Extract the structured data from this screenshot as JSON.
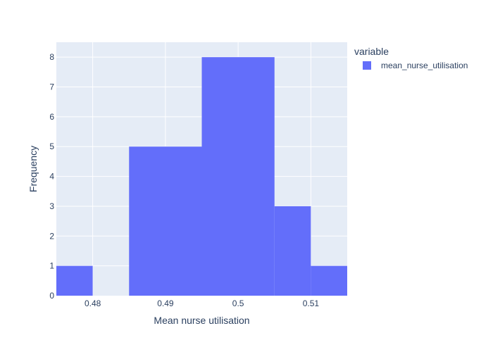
{
  "chart_data": {
    "type": "bar",
    "bins": [
      {
        "start": 0.475,
        "end": 0.48,
        "count": 1
      },
      {
        "start": 0.48,
        "end": 0.485,
        "count": 0
      },
      {
        "start": 0.485,
        "end": 0.495,
        "count": 5
      },
      {
        "start": 0.495,
        "end": 0.505,
        "count": 8
      },
      {
        "start": 0.505,
        "end": 0.51,
        "count": 3
      },
      {
        "start": 0.51,
        "end": 0.515,
        "count": 1
      }
    ],
    "xlabel": "Mean nurse utilisation",
    "ylabel": "Frequency",
    "xlim": [
      0.475,
      0.515
    ],
    "ylim": [
      0,
      8.5
    ],
    "xticks": [
      0.48,
      0.49,
      0.5,
      0.51
    ],
    "xtick_labels": [
      "0.48",
      "0.49",
      "0.5",
      "0.51"
    ],
    "yticks": [
      0,
      1,
      2,
      3,
      4,
      5,
      6,
      7,
      8
    ],
    "ytick_labels": [
      "0",
      "1",
      "2",
      "3",
      "4",
      "5",
      "6",
      "7",
      "8"
    ],
    "grid": true,
    "legend": {
      "title": "variable",
      "placement": "right",
      "items": [
        {
          "name": "mean_nurse_utilisation",
          "color": "#636efa"
        }
      ]
    },
    "colors": {
      "bar": "#636efa",
      "plot_bg": "#e5ecf6",
      "grid": "#ffffff",
      "text": "#2a3f5f"
    }
  }
}
